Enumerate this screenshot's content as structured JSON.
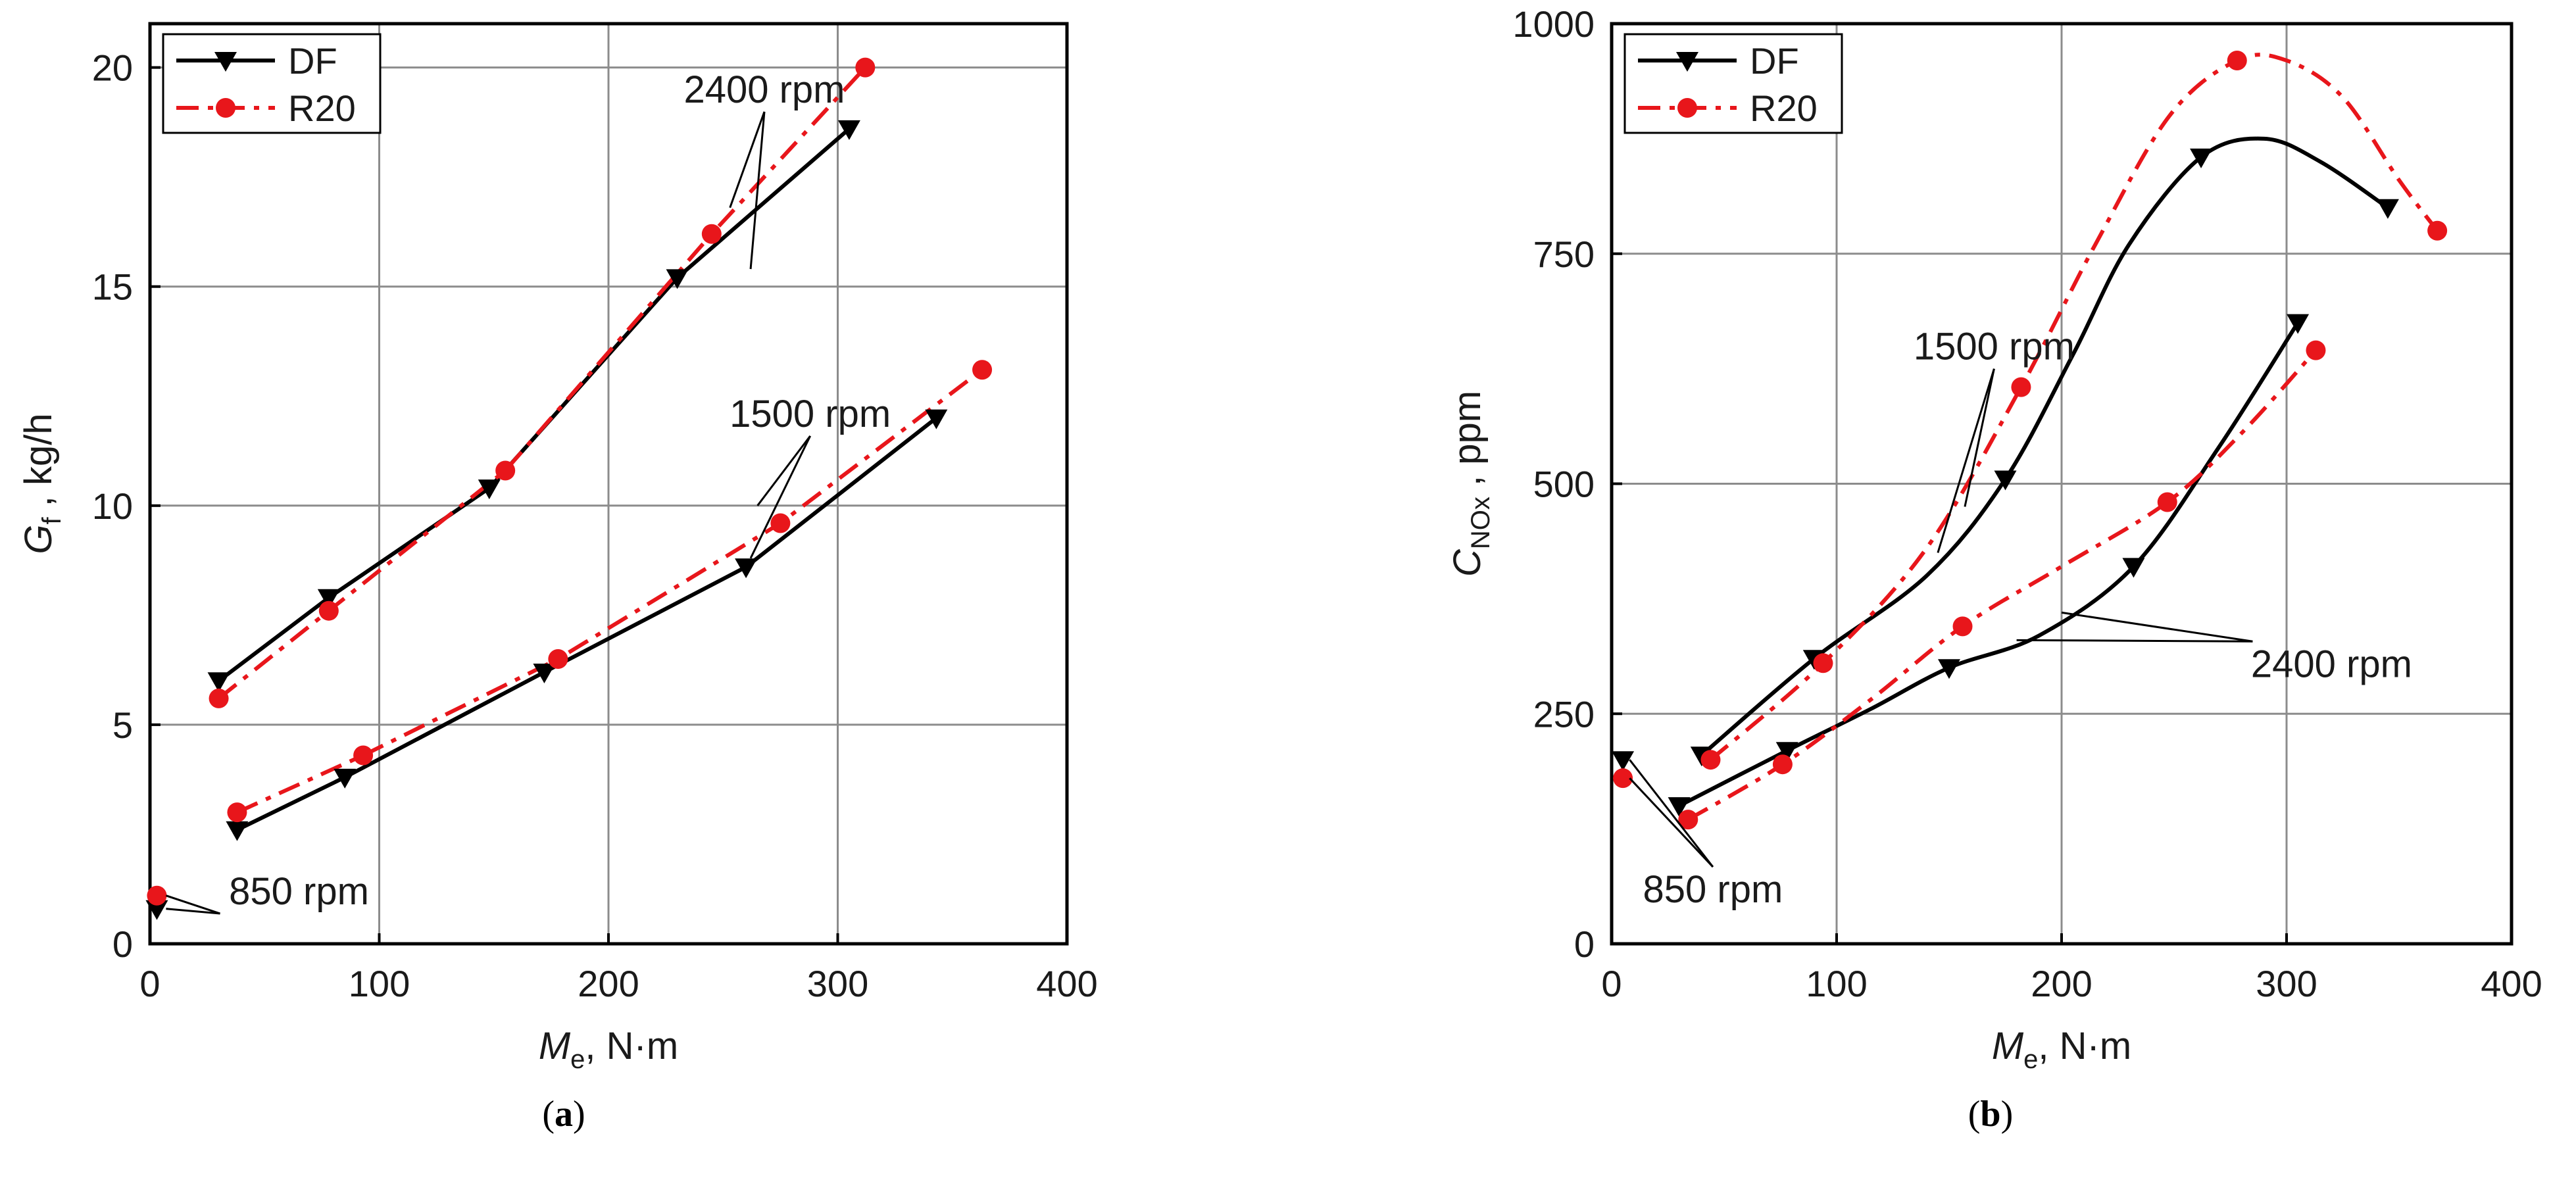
{
  "chart_data": [
    {
      "type": "line",
      "panel_label": "a",
      "xlabel": {
        "symbol": "M",
        "subscript": "e",
        "unit": ", N·m"
      },
      "ylabel": {
        "symbol": "G",
        "subscript": "f",
        "unit": " , kg/h"
      },
      "xlim": [
        0,
        400
      ],
      "ylim": [
        0,
        21
      ],
      "xticks": [
        0,
        100,
        200,
        300,
        400
      ],
      "yticks": [
        0,
        5,
        10,
        15,
        20
      ],
      "xtick_labels": [
        "0",
        "100",
        "200",
        "300",
        "400"
      ],
      "ytick_labels": [
        "0",
        "5",
        "10",
        "15",
        "20"
      ],
      "grid": true,
      "legend": {
        "position": "top-left",
        "entries": [
          "DF",
          "R20"
        ]
      },
      "series": [
        {
          "name": "DF",
          "group": "2400 rpm",
          "color": "#000000",
          "marker": "triangle-down",
          "dash": "solid",
          "x": [
            30,
            78,
            148,
            230,
            305
          ],
          "y": [
            6.0,
            7.9,
            10.4,
            15.2,
            18.6
          ]
        },
        {
          "name": "R20",
          "group": "2400 rpm",
          "color": "#e8161b",
          "marker": "circle",
          "dash": "dashdot",
          "x": [
            30,
            78,
            155,
            245,
            312
          ],
          "y": [
            5.6,
            7.6,
            10.8,
            16.2,
            20.0
          ]
        },
        {
          "name": "DF",
          "group": "1500 rpm",
          "color": "#000000",
          "marker": "triangle-down",
          "dash": "solid",
          "x": [
            38,
            85,
            172,
            260,
            343
          ],
          "y": [
            2.6,
            3.8,
            6.2,
            8.6,
            12.0
          ]
        },
        {
          "name": "R20",
          "group": "1500 rpm",
          "color": "#e8161b",
          "marker": "circle",
          "dash": "dashdot",
          "x": [
            38,
            93,
            178,
            275,
            363
          ],
          "y": [
            3.0,
            4.3,
            6.5,
            9.6,
            13.1
          ]
        },
        {
          "name": "DF",
          "group": "850 rpm",
          "color": "#000000",
          "marker": "triangle-down",
          "dash": "solid",
          "x": [
            3
          ],
          "y": [
            0.8
          ]
        },
        {
          "name": "R20",
          "group": "850 rpm",
          "color": "#e8161b",
          "marker": "circle",
          "dash": "dashdot",
          "x": [
            3
          ],
          "y": [
            1.1
          ]
        }
      ],
      "annotations": [
        {
          "text": "2400 rpm",
          "text_at": [
            268,
            19.2
          ],
          "arrows_to": [
            [
              253,
              16.8
            ],
            [
              262,
              15.4
            ]
          ]
        },
        {
          "text": "1500 rpm",
          "text_at": [
            288,
            11.8
          ],
          "arrows_to": [
            [
              265,
              10.0
            ],
            [
              262,
              8.8
            ]
          ]
        },
        {
          "text": "850 rpm",
          "text_at": [
            65,
            0.9
          ],
          "arrows_to": [
            [
              7,
              1.1
            ],
            [
              7,
              0.8
            ]
          ]
        }
      ]
    },
    {
      "type": "line",
      "panel_label": "b",
      "xlabel": {
        "symbol": "M",
        "subscript": "e",
        "unit": ", N·m"
      },
      "ylabel": {
        "symbol": "C",
        "subscript": "NOx",
        "unit": " , ppm"
      },
      "xlim": [
        0,
        400
      ],
      "ylim": [
        0,
        1000
      ],
      "xticks": [
        0,
        100,
        200,
        300,
        400
      ],
      "yticks": [
        0,
        250,
        500,
        750,
        1000
      ],
      "xtick_labels": [
        "0",
        "100",
        "200",
        "300",
        "400"
      ],
      "ytick_labels": [
        "0",
        "250",
        "500",
        "750",
        "1000"
      ],
      "grid": true,
      "legend": {
        "position": "top-left",
        "entries": [
          "DF",
          "R20"
        ]
      },
      "series": [
        {
          "name": "DF",
          "group": "1500 rpm",
          "color": "#000000",
          "marker": "triangle-down",
          "dash": "solid",
          "x": [
            40,
            90,
            175,
            262,
            345
          ],
          "y": [
            205,
            310,
            505,
            855,
            800
          ],
          "curve": [
            [
              40,
              205
            ],
            [
              90,
              310
            ],
            [
              140,
              400
            ],
            [
              175,
              505
            ],
            [
              205,
              640
            ],
            [
              230,
              760
            ],
            [
              262,
              855
            ],
            [
              290,
              875
            ],
            [
              315,
              850
            ],
            [
              345,
              800
            ]
          ]
        },
        {
          "name": "R20",
          "group": "1500 rpm",
          "color": "#e8161b",
          "marker": "circle",
          "dash": "dashdot",
          "x": [
            44,
            94,
            182,
            278,
            367
          ],
          "y": [
            200,
            305,
            605,
            960,
            775
          ],
          "curve": [
            [
              44,
              200
            ],
            [
              94,
              305
            ],
            [
              140,
              430
            ],
            [
              182,
              605
            ],
            [
              215,
              760
            ],
            [
              248,
              900
            ],
            [
              278,
              960
            ],
            [
              300,
              960
            ],
            [
              325,
              920
            ],
            [
              350,
              830
            ],
            [
              367,
              775
            ]
          ]
        },
        {
          "name": "DF",
          "group": "2400 rpm",
          "color": "#000000",
          "marker": "triangle-down",
          "dash": "solid",
          "x": [
            30,
            78,
            150,
            232,
            305
          ],
          "y": [
            150,
            210,
            300,
            410,
            675
          ],
          "curve": [
            [
              30,
              150
            ],
            [
              78,
              210
            ],
            [
              115,
              255
            ],
            [
              150,
              300
            ],
            [
              190,
              335
            ],
            [
              232,
              410
            ],
            [
              270,
              540
            ],
            [
              305,
              675
            ]
          ]
        },
        {
          "name": "R20",
          "group": "2400 rpm",
          "color": "#e8161b",
          "marker": "circle",
          "dash": "dashdot",
          "x": [
            34,
            76,
            156,
            247,
            313
          ],
          "y": [
            135,
            195,
            345,
            480,
            645
          ],
          "curve": [
            [
              34,
              135
            ],
            [
              76,
              195
            ],
            [
              115,
              265
            ],
            [
              156,
              345
            ],
            [
              200,
              410
            ],
            [
              247,
              480
            ],
            [
              280,
              555
            ],
            [
              313,
              645
            ]
          ]
        },
        {
          "name": "DF",
          "group": "850 rpm",
          "color": "#000000",
          "marker": "triangle-down",
          "dash": "solid",
          "x": [
            5
          ],
          "y": [
            200
          ]
        },
        {
          "name": "R20",
          "group": "850 rpm",
          "color": "#e8161b",
          "marker": "circle",
          "dash": "dashdot",
          "x": [
            5
          ],
          "y": [
            180
          ]
        }
      ],
      "annotations": [
        {
          "text": "1500 rpm",
          "text_at": [
            170,
            635
          ],
          "arrows_to": [
            [
              145,
              425
            ],
            [
              157,
              475
            ]
          ]
        },
        {
          "text": "2400 rpm",
          "text_at": [
            320,
            290
          ],
          "arrows_to": [
            [
              200,
              360
            ],
            [
              180,
              330
            ]
          ]
        },
        {
          "text": "850 rpm",
          "text_at": [
            45,
            45
          ],
          "arrows_to": [
            [
              8,
              200
            ],
            [
              8,
              180
            ]
          ]
        }
      ]
    }
  ],
  "captions": [
    "(a)",
    "(b)"
  ],
  "colors": {
    "df": "#000000",
    "r20": "#e8161b",
    "grid": "#8c8c8c",
    "frame": "#000000"
  }
}
